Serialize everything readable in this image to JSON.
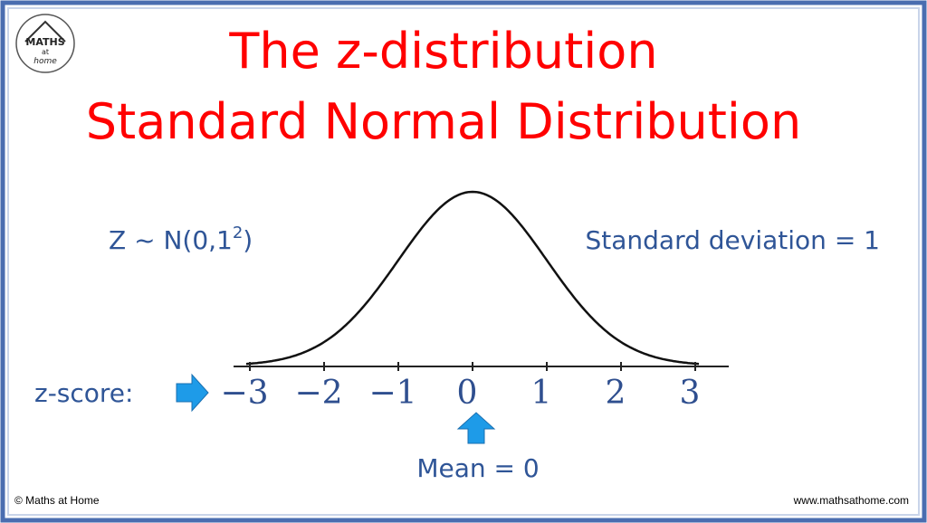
{
  "logo": {
    "line1": "MATHS",
    "line2": "at",
    "line3": "home"
  },
  "title": {
    "line1": "The z-distribution",
    "line2": "Standard Normal Distribution"
  },
  "notation": {
    "base": "Z ~ N(0,1",
    "exponent": "2",
    "close": ")"
  },
  "std_note": "Standard deviation = 1",
  "axis_label": "z-score:",
  "ticks": [
    "−3",
    "−2",
    "−1",
    "0",
    "1",
    "2",
    "3"
  ],
  "mean_note": "Mean = 0",
  "footer": {
    "left": "© Maths at Home",
    "right": "www.mathsathome.com"
  }
}
